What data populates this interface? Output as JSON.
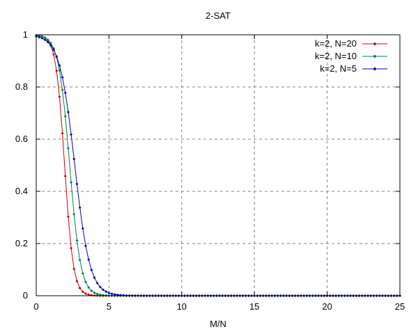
{
  "chart_data": {
    "type": "line",
    "title": "2-SAT",
    "xlabel": "M/N",
    "ylabel": "",
    "xlim": [
      0,
      25
    ],
    "ylim": [
      0,
      1
    ],
    "xticks": [
      0,
      5,
      10,
      15,
      20,
      25
    ],
    "yticks": [
      0,
      0.2,
      0.4,
      0.6,
      0.8,
      1
    ],
    "xtick_labels": [
      "0",
      "5",
      "10",
      "15",
      "20",
      "25"
    ],
    "ytick_labels": [
      "0",
      "0.2",
      "0.4",
      "0.6",
      "0.8",
      "1"
    ],
    "grid": true,
    "legend_position": "top-right",
    "x_step": 0.2,
    "x_end": 25,
    "series": [
      {
        "name": "k=2, N=20",
        "color": "#cc0000",
        "curve": "logistic",
        "midpoint": 1.95,
        "steepness": 0.3,
        "marker": "diamond"
      },
      {
        "name": "k=2, N=10",
        "color": "#008040",
        "curve": "logistic",
        "midpoint": 2.3,
        "steepness": 0.38,
        "marker": "diamond"
      },
      {
        "name": "k=2, N=5",
        "color": "#0000b0",
        "curve": "logistic",
        "midpoint": 2.65,
        "steepness": 0.52,
        "marker": "diamond"
      }
    ]
  }
}
